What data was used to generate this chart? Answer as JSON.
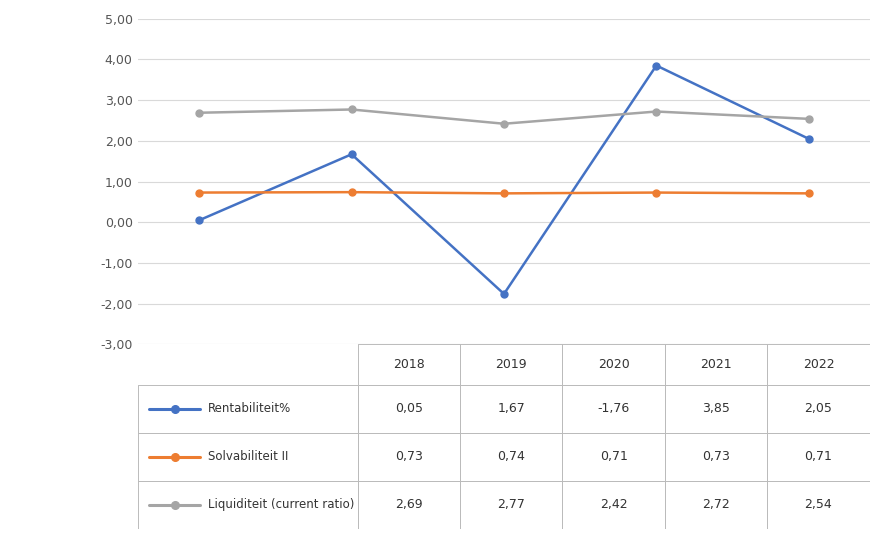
{
  "years": [
    2018,
    2019,
    2020,
    2021,
    2022
  ],
  "rentabiliteit": [
    0.05,
    1.67,
    -1.76,
    3.85,
    2.05
  ],
  "solvabiliteit": [
    0.73,
    0.74,
    0.71,
    0.73,
    0.71
  ],
  "liquiditeit": [
    2.69,
    2.77,
    2.42,
    2.72,
    2.54
  ],
  "rentabiliteit_color": "#4472C4",
  "solvabiliteit_color": "#ED7D31",
  "liquiditeit_color": "#A5A5A5",
  "ylim": [
    -3.0,
    5.0
  ],
  "yticks": [
    -3.0,
    -2.0,
    -1.0,
    0.0,
    1.0,
    2.0,
    3.0,
    4.0,
    5.0
  ],
  "ytick_labels": [
    "-3,00",
    "-2,00",
    "-1,00",
    "0,00",
    "1,00",
    "2,00",
    "3,00",
    "4,00",
    "5,00"
  ],
  "background_color": "#FFFFFF",
  "grid_color": "#D9D9D9",
  "table_border_color": "#BBBBBB",
  "marker_size": 5,
  "line_width": 1.8,
  "table_values": {
    "Rentabiliteit%": [
      "0,05",
      "1,67",
      "-1,76",
      "3,85",
      "2,05"
    ],
    "Solvabiliteit II": [
      "0,73",
      "0,74",
      "0,71",
      "0,73",
      "0,71"
    ],
    "Liquiditeit (current ratio)": [
      "2,69",
      "2,77",
      "2,42",
      "2,72",
      "2,54"
    ]
  }
}
